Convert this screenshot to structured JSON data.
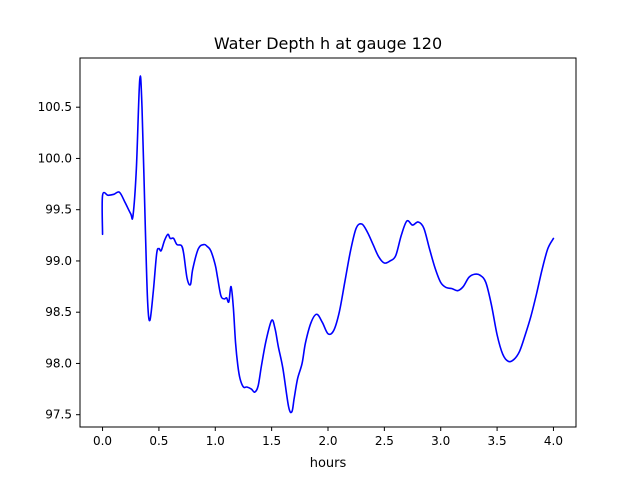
{
  "chart_data": {
    "type": "line",
    "title": "Water Depth h at gauge 120",
    "xlabel": "hours",
    "ylabel": "",
    "xlim": [
      -0.2,
      4.2
    ],
    "ylim": [
      97.38,
      100.98
    ],
    "x_ticks": [
      0.0,
      0.5,
      1.0,
      1.5,
      2.0,
      2.5,
      3.0,
      3.5,
      4.0
    ],
    "x_tick_labels": [
      "0.0",
      "0.5",
      "1.0",
      "1.5",
      "2.0",
      "2.5",
      "3.0",
      "3.5",
      "4.0"
    ],
    "y_ticks": [
      97.5,
      98.0,
      98.5,
      99.0,
      99.5,
      100.0,
      100.5
    ],
    "y_tick_labels": [
      "97.5",
      "98.0",
      "98.5",
      "99.0",
      "99.5",
      "100.0",
      "100.5"
    ],
    "grid": false,
    "legend": "none",
    "series": [
      {
        "color": "#0000ff",
        "x": [
          0.0,
          0.0,
          0.05,
          0.1,
          0.15,
          0.2,
          0.25,
          0.27,
          0.3,
          0.33,
          0.35,
          0.38,
          0.4,
          0.42,
          0.45,
          0.48,
          0.5,
          0.52,
          0.55,
          0.58,
          0.6,
          0.63,
          0.66,
          0.7,
          0.72,
          0.75,
          0.78,
          0.8,
          0.85,
          0.9,
          0.93,
          0.96,
          1.0,
          1.02,
          1.05,
          1.08,
          1.1,
          1.12,
          1.14,
          1.16,
          1.18,
          1.2,
          1.22,
          1.25,
          1.28,
          1.32,
          1.35,
          1.38,
          1.41,
          1.45,
          1.5,
          1.53,
          1.56,
          1.6,
          1.65,
          1.68,
          1.7,
          1.73,
          1.77,
          1.8,
          1.85,
          1.9,
          1.95,
          2.0,
          2.05,
          2.1,
          2.15,
          2.2,
          2.25,
          2.3,
          2.35,
          2.4,
          2.45,
          2.5,
          2.55,
          2.6,
          2.65,
          2.7,
          2.75,
          2.8,
          2.85,
          2.9,
          2.95,
          3.0,
          3.05,
          3.1,
          3.15,
          3.2,
          3.25,
          3.3,
          3.35,
          3.4,
          3.45,
          3.5,
          3.55,
          3.6,
          3.65,
          3.7,
          3.75,
          3.8,
          3.85,
          3.9,
          3.95,
          4.0
        ],
        "y": [
          99.26,
          99.64,
          99.64,
          99.65,
          99.67,
          99.57,
          99.46,
          99.44,
          99.9,
          100.77,
          100.5,
          99.3,
          98.6,
          98.42,
          98.7,
          99.07,
          99.12,
          99.1,
          99.2,
          99.26,
          99.22,
          99.22,
          99.16,
          99.15,
          99.07,
          98.83,
          98.77,
          98.92,
          99.12,
          99.16,
          99.14,
          99.1,
          98.96,
          98.84,
          98.66,
          98.63,
          98.64,
          98.6,
          98.75,
          98.55,
          98.2,
          97.98,
          97.85,
          97.77,
          97.77,
          97.75,
          97.72,
          97.78,
          97.98,
          98.22,
          98.42,
          98.34,
          98.16,
          97.95,
          97.58,
          97.53,
          97.66,
          97.85,
          98.0,
          98.2,
          98.4,
          98.48,
          98.4,
          98.29,
          98.32,
          98.5,
          98.8,
          99.1,
          99.32,
          99.36,
          99.28,
          99.16,
          99.04,
          98.98,
          99.0,
          99.05,
          99.25,
          99.39,
          99.35,
          99.38,
          99.32,
          99.12,
          98.93,
          98.79,
          98.74,
          98.73,
          98.71,
          98.75,
          98.84,
          98.87,
          98.86,
          98.79,
          98.57,
          98.28,
          98.09,
          98.02,
          98.04,
          98.12,
          98.28,
          98.46,
          98.68,
          98.92,
          99.12,
          99.22
        ]
      }
    ]
  }
}
